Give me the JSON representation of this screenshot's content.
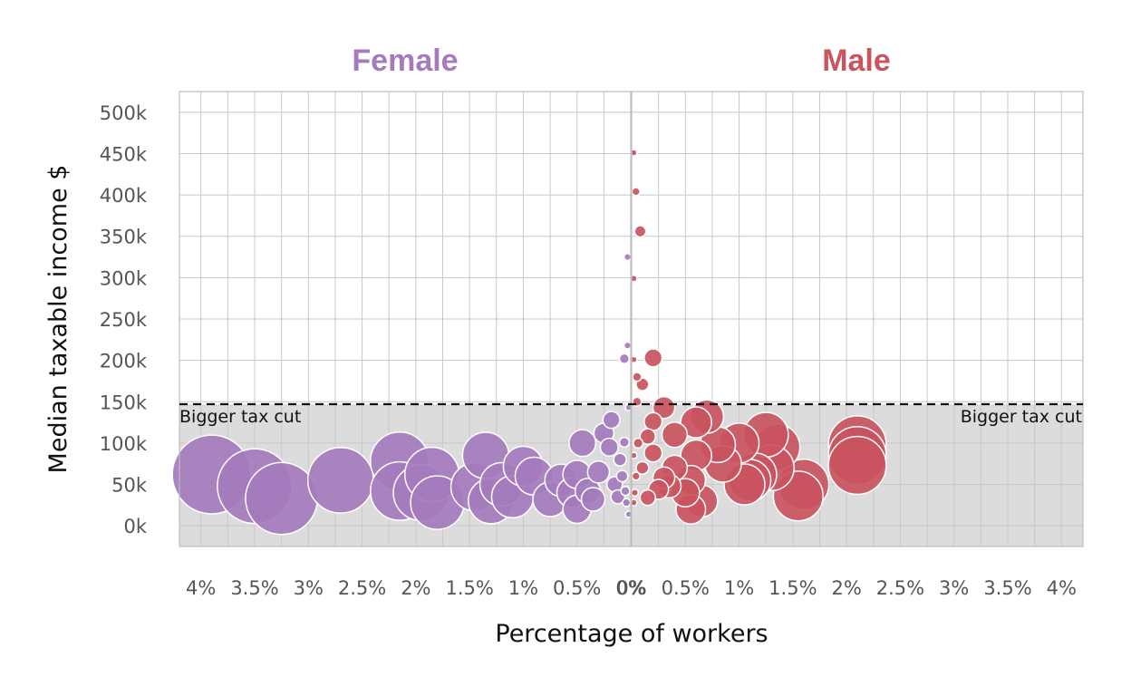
{
  "colors": {
    "female": "#a47bbd",
    "male": "#c9545e",
    "shade": "#dcdcdc",
    "threshold": "#111111"
  },
  "chart_data": {
    "type": "scatter",
    "panels": [
      {
        "name": "Female",
        "title": "Female",
        "x_direction": "reversed"
      },
      {
        "name": "Male",
        "title": "Male",
        "x_direction": "normal"
      }
    ],
    "xlabel": "Percentage of workers",
    "ylabel": "Median taxable income $",
    "xlim": [
      0,
      4.2
    ],
    "ylim": [
      -25000,
      525000
    ],
    "xticks": [
      {
        "v": 0,
        "label": "0%"
      },
      {
        "v": 0.5,
        "label": "0.5%"
      },
      {
        "v": 1,
        "label": "1%"
      },
      {
        "v": 1.5,
        "label": "1.5%"
      },
      {
        "v": 2,
        "label": "2%"
      },
      {
        "v": 2.5,
        "label": "2.5%"
      },
      {
        "v": 3,
        "label": "3%"
      },
      {
        "v": 3.5,
        "label": "3.5%"
      },
      {
        "v": 4,
        "label": "4%"
      }
    ],
    "yticks": [
      {
        "v": 0,
        "label": "0k"
      },
      {
        "v": 50000,
        "label": "50k"
      },
      {
        "v": 100000,
        "label": "100k"
      },
      {
        "v": 150000,
        "label": "150k"
      },
      {
        "v": 200000,
        "label": "200k"
      },
      {
        "v": 250000,
        "label": "250k"
      },
      {
        "v": 300000,
        "label": "300k"
      },
      {
        "v": 350000,
        "label": "350k"
      },
      {
        "v": 400000,
        "label": "400k"
      },
      {
        "v": 450000,
        "label": "450k"
      },
      {
        "v": 500000,
        "label": "500k"
      }
    ],
    "threshold": {
      "y": 147000,
      "label": "Bigger tax cut"
    },
    "grid": true,
    "size_encodes": "x",
    "series": [
      {
        "name": "Female",
        "points": [
          {
            "x": 3.9,
            "y": 62000
          },
          {
            "x": 3.5,
            "y": 48000
          },
          {
            "x": 3.25,
            "y": 33000
          },
          {
            "x": 2.7,
            "y": 55000
          },
          {
            "x": 2.15,
            "y": 78000
          },
          {
            "x": 2.15,
            "y": 42000
          },
          {
            "x": 1.95,
            "y": 40000
          },
          {
            "x": 1.85,
            "y": 62000
          },
          {
            "x": 1.8,
            "y": 28000
          },
          {
            "x": 1.45,
            "y": 47000
          },
          {
            "x": 1.35,
            "y": 85000
          },
          {
            "x": 1.3,
            "y": 30000
          },
          {
            "x": 1.2,
            "y": 50000
          },
          {
            "x": 1.0,
            "y": 72000
          },
          {
            "x": 1.1,
            "y": 35000
          },
          {
            "x": 0.9,
            "y": 60000
          },
          {
            "x": 0.75,
            "y": 32000
          },
          {
            "x": 0.65,
            "y": 55000
          },
          {
            "x": 0.55,
            "y": 40000
          },
          {
            "x": 0.5,
            "y": 62000
          },
          {
            "x": 0.5,
            "y": 20000
          },
          {
            "x": 0.45,
            "y": 100000
          },
          {
            "x": 0.4,
            "y": 42000
          },
          {
            "x": 0.35,
            "y": 32000
          },
          {
            "x": 0.3,
            "y": 65000
          },
          {
            "x": 0.25,
            "y": 112000
          },
          {
            "x": 0.2,
            "y": 95000
          },
          {
            "x": 0.18,
            "y": 128000
          },
          {
            "x": 0.15,
            "y": 50000
          },
          {
            "x": 0.12,
            "y": 35000
          },
          {
            "x": 0.1,
            "y": 80000
          },
          {
            "x": 0.08,
            "y": 60000
          },
          {
            "x": 0.06,
            "y": 101000
          },
          {
            "x": 0.06,
            "y": 202000
          },
          {
            "x": 0.03,
            "y": 218000
          },
          {
            "x": 0.03,
            "y": 325000
          },
          {
            "x": 0.02,
            "y": 143000
          },
          {
            "x": 0.02,
            "y": 14000
          },
          {
            "x": 0.04,
            "y": 28000
          },
          {
            "x": 0.05,
            "y": 42000
          }
        ]
      },
      {
        "name": "Male",
        "points": [
          {
            "x": 0.02,
            "y": 451000
          },
          {
            "x": 0.04,
            "y": 404000
          },
          {
            "x": 0.08,
            "y": 356000
          },
          {
            "x": 0.02,
            "y": 299000
          },
          {
            "x": 0.2,
            "y": 203000
          },
          {
            "x": 0.02,
            "y": 201000
          },
          {
            "x": 0.05,
            "y": 180000
          },
          {
            "x": 0.1,
            "y": 171000
          },
          {
            "x": 0.05,
            "y": 150000
          },
          {
            "x": 0.3,
            "y": 143000
          },
          {
            "x": 0.7,
            "y": 132000
          },
          {
            "x": 0.6,
            "y": 125000
          },
          {
            "x": 0.2,
            "y": 126000
          },
          {
            "x": 0.4,
            "y": 110000
          },
          {
            "x": 0.15,
            "y": 108000
          },
          {
            "x": 0.8,
            "y": 98000
          },
          {
            "x": 1.0,
            "y": 100000
          },
          {
            "x": 1.25,
            "y": 110000
          },
          {
            "x": 1.35,
            "y": 95000
          },
          {
            "x": 1.3,
            "y": 70000
          },
          {
            "x": 1.15,
            "y": 62000
          },
          {
            "x": 1.1,
            "y": 55000
          },
          {
            "x": 1.05,
            "y": 50000
          },
          {
            "x": 1.6,
            "y": 50000
          },
          {
            "x": 1.55,
            "y": 36000
          },
          {
            "x": 2.1,
            "y": 98000
          },
          {
            "x": 2.1,
            "y": 85000
          },
          {
            "x": 2.1,
            "y": 73000
          },
          {
            "x": 0.85,
            "y": 75000
          },
          {
            "x": 0.6,
            "y": 85000
          },
          {
            "x": 0.55,
            "y": 55000
          },
          {
            "x": 0.65,
            "y": 30000
          },
          {
            "x": 0.55,
            "y": 20000
          },
          {
            "x": 0.5,
            "y": 40000
          },
          {
            "x": 0.4,
            "y": 70000
          },
          {
            "x": 0.35,
            "y": 48000
          },
          {
            "x": 0.3,
            "y": 58000
          },
          {
            "x": 0.25,
            "y": 44000
          },
          {
            "x": 0.2,
            "y": 88000
          },
          {
            "x": 0.15,
            "y": 34000
          },
          {
            "x": 0.1,
            "y": 70000
          },
          {
            "x": 0.06,
            "y": 100000
          },
          {
            "x": 0.04,
            "y": 60000
          },
          {
            "x": 0.03,
            "y": 40000
          },
          {
            "x": 0.02,
            "y": 85000
          },
          {
            "x": 0.02,
            "y": 28000
          }
        ]
      }
    ]
  }
}
